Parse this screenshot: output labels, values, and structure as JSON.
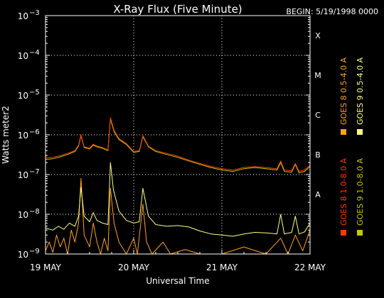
{
  "chart_data": {
    "type": "line",
    "title": "X-Ray Flux (Five Minute)",
    "begin_label": "BEGIN: 5/19/1998 0000",
    "xlabel": "Universal Time",
    "ylabel": "Watts meter2",
    "xlim": [
      "1998-05-19T00:00",
      "1998-05-22T00:00"
    ],
    "ylim": [
      1e-09,
      0.001
    ],
    "yscale": "log",
    "grid": true,
    "x_ticks": [
      {
        "label": "19 MAY",
        "t": "1998-05-19T00:00"
      },
      {
        "label": "20 MAY",
        "t": "1998-05-20T00:00"
      },
      {
        "label": "21 MAY",
        "t": "1998-05-21T00:00"
      },
      {
        "label": "22 MAY",
        "t": "1998-05-22T00:00"
      }
    ],
    "y_ticks": [
      {
        "base": "10",
        "exp": "−9",
        "value": 1e-09
      },
      {
        "base": "10",
        "exp": "−8",
        "value": 1e-08
      },
      {
        "base": "10",
        "exp": "−7",
        "value": 1e-07
      },
      {
        "base": "10",
        "exp": "−6",
        "value": 1e-06
      },
      {
        "base": "10",
        "exp": "−5",
        "value": 1e-05
      },
      {
        "base": "10",
        "exp": "−4",
        "value": 0.0001
      },
      {
        "base": "10",
        "exp": "−3",
        "value": 0.001
      }
    ],
    "flare_classes": [
      {
        "label": "X",
        "value": 0.0001
      },
      {
        "label": "M",
        "value": 1e-05
      },
      {
        "label": "C",
        "value": 1e-06
      },
      {
        "label": "B",
        "value": 1e-07
      },
      {
        "label": "A",
        "value": 1e-08
      }
    ],
    "legend_position": "right",
    "series": [
      {
        "name": "GOES 8 1.0-8.0 A",
        "color": "#ff3b00",
        "points": [
          [
            "1998-05-19T00:00",
            2.6e-07
          ],
          [
            "1998-05-19T02:00",
            2.7e-07
          ],
          [
            "1998-05-19T04:00",
            3e-07
          ],
          [
            "1998-05-19T06:00",
            3.4e-07
          ],
          [
            "1998-05-19T08:00",
            4e-07
          ],
          [
            "1998-05-19T09:00",
            5.5e-07
          ],
          [
            "1998-05-19T09:40",
            1e-06
          ],
          [
            "1998-05-19T10:30",
            5e-07
          ],
          [
            "1998-05-19T12:00",
            4.6e-07
          ],
          [
            "1998-05-19T13:00",
            5.8e-07
          ],
          [
            "1998-05-19T14:00",
            5.2e-07
          ],
          [
            "1998-05-19T15:30",
            4.8e-07
          ],
          [
            "1998-05-19T17:00",
            4.2e-07
          ],
          [
            "1998-05-19T17:40",
            2.7e-06
          ],
          [
            "1998-05-19T18:40",
            1.3e-06
          ],
          [
            "1998-05-19T20:00",
            8e-07
          ],
          [
            "1998-05-19T22:00",
            6e-07
          ],
          [
            "1998-05-20T00:00",
            3.8e-07
          ],
          [
            "1998-05-20T01:30",
            4e-07
          ],
          [
            "1998-05-20T02:30",
            9.5e-07
          ],
          [
            "1998-05-20T04:00",
            5.2e-07
          ],
          [
            "1998-05-20T06:00",
            4e-07
          ],
          [
            "1998-05-20T09:00",
            3.4e-07
          ],
          [
            "1998-05-20T12:00",
            2.9e-07
          ],
          [
            "1998-05-20T15:00",
            2.3e-07
          ],
          [
            "1998-05-20T18:00",
            1.9e-07
          ],
          [
            "1998-05-20T21:00",
            1.6e-07
          ],
          [
            "1998-05-21T00:00",
            1.4e-07
          ],
          [
            "1998-05-21T03:00",
            1.3e-07
          ],
          [
            "1998-05-21T06:00",
            1.5e-07
          ],
          [
            "1998-05-21T09:00",
            1.6e-07
          ],
          [
            "1998-05-21T12:00",
            1.5e-07
          ],
          [
            "1998-05-21T15:00",
            1.4e-07
          ],
          [
            "1998-05-21T16:00",
            2.2e-07
          ],
          [
            "1998-05-21T17:00",
            1.3e-07
          ],
          [
            "1998-05-21T19:00",
            1.25e-07
          ],
          [
            "1998-05-21T20:00",
            1.9e-07
          ],
          [
            "1998-05-21T21:00",
            1.2e-07
          ],
          [
            "1998-05-21T22:30",
            1.3e-07
          ],
          [
            "1998-05-22T00:00",
            1.7e-07
          ]
        ]
      },
      {
        "name": "GOES 8 0.5-4.0 A",
        "color": "#ffa020",
        "points": [
          [
            "1998-05-19T00:00",
            1.2e-09
          ],
          [
            "1998-05-19T01:00",
            2e-09
          ],
          [
            "1998-05-19T02:00",
            1.1e-09
          ],
          [
            "1998-05-19T03:00",
            3e-09
          ],
          [
            "1998-05-19T04:00",
            1.5e-09
          ],
          [
            "1998-05-19T05:00",
            2.5e-09
          ],
          [
            "1998-05-19T06:00",
            1e-09
          ],
          [
            "1998-05-19T07:00",
            4e-09
          ],
          [
            "1998-05-19T08:00",
            2e-09
          ],
          [
            "1998-05-19T09:00",
            6e-09
          ],
          [
            "1998-05-19T09:40",
            8e-08
          ],
          [
            "1998-05-19T10:30",
            3e-09
          ],
          [
            "1998-05-19T12:00",
            1.5e-09
          ],
          [
            "1998-05-19T13:00",
            6e-09
          ],
          [
            "1998-05-19T14:00",
            2e-09
          ],
          [
            "1998-05-19T15:00",
            1e-09
          ],
          [
            "1998-05-19T16:00",
            2.5e-09
          ],
          [
            "1998-05-19T17:00",
            1.2e-09
          ],
          [
            "1998-05-19T17:40",
            4.5e-08
          ],
          [
            "1998-05-19T18:40",
            6e-09
          ],
          [
            "1998-05-19T20:00",
            2e-09
          ],
          [
            "1998-05-19T22:00",
            1e-09
          ],
          [
            "1998-05-20T00:00",
            2.5e-09
          ],
          [
            "1998-05-20T01:00",
            1e-09
          ],
          [
            "1998-05-20T02:30",
            1.8e-08
          ],
          [
            "1998-05-20T03:30",
            2e-09
          ],
          [
            "1998-05-20T05:00",
            1e-09
          ],
          [
            "1998-05-20T08:00",
            2e-09
          ],
          [
            "1998-05-20T10:00",
            1e-09
          ],
          [
            "1998-05-20T14:00",
            1.3e-09
          ],
          [
            "1998-05-20T18:00",
            1e-09
          ],
          [
            "1998-05-21T00:00",
            1e-09
          ],
          [
            "1998-05-21T06:00",
            1.5e-09
          ],
          [
            "1998-05-21T12:00",
            1e-09
          ],
          [
            "1998-05-21T16:00",
            2.5e-09
          ],
          [
            "1998-05-21T18:00",
            1e-09
          ],
          [
            "1998-05-21T20:00",
            3e-09
          ],
          [
            "1998-05-21T22:00",
            1.2e-09
          ],
          [
            "1998-05-22T00:00",
            4e-09
          ]
        ]
      },
      {
        "name": "GOES 9 1.0-8.0 A",
        "color": "#c8c800",
        "points": [
          [
            "1998-05-19T00:00",
            2.4e-07
          ],
          [
            "1998-05-19T02:00",
            2.5e-07
          ],
          [
            "1998-05-19T04:00",
            2.8e-07
          ],
          [
            "1998-05-19T06:00",
            3.2e-07
          ],
          [
            "1998-05-19T08:00",
            3.8e-07
          ],
          [
            "1998-05-19T09:00",
            5.2e-07
          ],
          [
            "1998-05-19T09:40",
            9.5e-07
          ],
          [
            "1998-05-19T10:30",
            4.8e-07
          ],
          [
            "1998-05-19T12:00",
            4.4e-07
          ],
          [
            "1998-05-19T13:00",
            5.5e-07
          ],
          [
            "1998-05-19T14:00",
            5e-07
          ],
          [
            "1998-05-19T15:30",
            4.6e-07
          ],
          [
            "1998-05-19T17:00",
            4e-07
          ],
          [
            "1998-05-19T17:40",
            2.5e-06
          ],
          [
            "1998-05-19T18:40",
            1.2e-06
          ],
          [
            "1998-05-19T20:00",
            7.6e-07
          ],
          [
            "1998-05-19T22:00",
            5.7e-07
          ],
          [
            "1998-05-20T00:00",
            3.6e-07
          ],
          [
            "1998-05-20T01:30",
            3.8e-07
          ],
          [
            "1998-05-20T02:30",
            9e-07
          ],
          [
            "1998-05-20T04:00",
            5e-07
          ],
          [
            "1998-05-20T06:00",
            3.8e-07
          ],
          [
            "1998-05-20T09:00",
            3.2e-07
          ],
          [
            "1998-05-20T12:00",
            2.7e-07
          ],
          [
            "1998-05-20T15:00",
            2.2e-07
          ],
          [
            "1998-05-20T18:00",
            1.8e-07
          ],
          [
            "1998-05-20T21:00",
            1.5e-07
          ],
          [
            "1998-05-21T00:00",
            1.3e-07
          ],
          [
            "1998-05-21T03:00",
            1.2e-07
          ],
          [
            "1998-05-21T06:00",
            1.4e-07
          ],
          [
            "1998-05-21T09:00",
            1.5e-07
          ],
          [
            "1998-05-21T12:00",
            1.4e-07
          ],
          [
            "1998-05-21T15:00",
            1.3e-07
          ],
          [
            "1998-05-21T16:00",
            2e-07
          ],
          [
            "1998-05-21T17:00",
            1.2e-07
          ],
          [
            "1998-05-21T19:00",
            1.15e-07
          ],
          [
            "1998-05-21T20:00",
            1.8e-07
          ],
          [
            "1998-05-21T21:00",
            1.1e-07
          ],
          [
            "1998-05-21T22:30",
            1.2e-07
          ],
          [
            "1998-05-22T00:00",
            1.6e-07
          ]
        ]
      },
      {
        "name": "GOES 9 0.5-4.0 A",
        "color": "#ffff80",
        "points": [
          [
            "1998-05-19T00:00",
            4.5e-09
          ],
          [
            "1998-05-19T02:00",
            4e-09
          ],
          [
            "1998-05-19T03:30",
            5e-09
          ],
          [
            "1998-05-19T05:00",
            4.2e-09
          ],
          [
            "1998-05-19T06:30",
            6e-09
          ],
          [
            "1998-05-19T08:00",
            5e-09
          ],
          [
            "1998-05-19T09:00",
            9e-09
          ],
          [
            "1998-05-19T09:40",
            4.8e-08
          ],
          [
            "1998-05-19T10:30",
            9e-09
          ],
          [
            "1998-05-19T12:00",
            6.5e-09
          ],
          [
            "1998-05-19T13:00",
            1.1e-08
          ],
          [
            "1998-05-19T14:00",
            7e-09
          ],
          [
            "1998-05-19T15:30",
            6e-09
          ],
          [
            "1998-05-19T17:00",
            5.5e-09
          ],
          [
            "1998-05-19T17:40",
            2e-07
          ],
          [
            "1998-05-19T18:30",
            4e-08
          ],
          [
            "1998-05-19T20:00",
            1.2e-08
          ],
          [
            "1998-05-19T22:00",
            7e-09
          ],
          [
            "1998-05-20T00:00",
            6e-09
          ],
          [
            "1998-05-20T01:30",
            6.5e-09
          ],
          [
            "1998-05-20T02:30",
            4.5e-08
          ],
          [
            "1998-05-20T04:00",
            9e-09
          ],
          [
            "1998-05-20T06:00",
            5.5e-09
          ],
          [
            "1998-05-20T09:00",
            5e-09
          ],
          [
            "1998-05-20T12:00",
            5.2e-09
          ],
          [
            "1998-05-20T15:00",
            4.8e-09
          ],
          [
            "1998-05-20T18:00",
            3.8e-09
          ],
          [
            "1998-05-20T21:00",
            3.2e-09
          ],
          [
            "1998-05-21T00:00",
            3e-09
          ],
          [
            "1998-05-21T03:00",
            2.8e-09
          ],
          [
            "1998-05-21T06:00",
            3.2e-09
          ],
          [
            "1998-05-21T09:00",
            3.5e-09
          ],
          [
            "1998-05-21T12:00",
            3.4e-09
          ],
          [
            "1998-05-21T15:00",
            3.2e-09
          ],
          [
            "1998-05-21T16:00",
            1e-08
          ],
          [
            "1998-05-21T17:00",
            3.2e-09
          ],
          [
            "1998-05-21T19:00",
            3.5e-09
          ],
          [
            "1998-05-21T20:00",
            9e-09
          ],
          [
            "1998-05-21T21:00",
            3.2e-09
          ],
          [
            "1998-05-21T22:30",
            3.6e-09
          ],
          [
            "1998-05-22T00:00",
            6e-09
          ]
        ]
      }
    ]
  }
}
